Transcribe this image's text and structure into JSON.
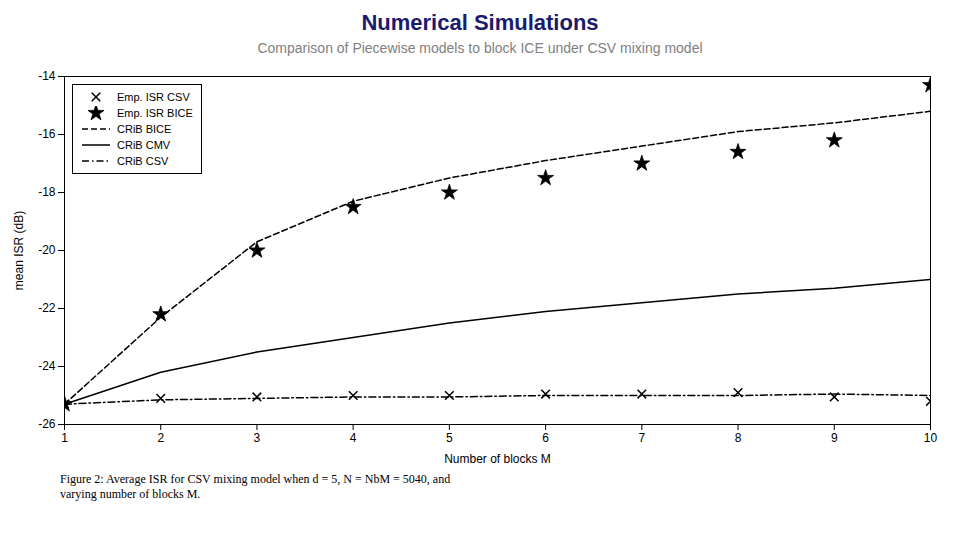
{
  "chart_data": {
    "type": "line",
    "title": "Numerical Simulations",
    "subtitle": "Comparison of Piecewise models to block ICE under CSV mixing model",
    "xlabel": "Number of blocks M",
    "ylabel": "mean ISR (dB)",
    "caption": "Figure 2:  Average ISR for CSV mixing model when d = 5, N = NbM = 5040, and\nvarying number of blocks M.",
    "x": [
      1,
      2,
      3,
      4,
      5,
      6,
      7,
      8,
      9,
      10
    ],
    "series": [
      {
        "name": "Emp. ISR CSV",
        "type": "scatter",
        "marker": "x",
        "color": "black",
        "values": [
          -25.3,
          -25.1,
          -25.05,
          -25.0,
          -25.0,
          -24.95,
          -24.95,
          -24.9,
          -25.05,
          -25.2
        ]
      },
      {
        "name": "Emp. ISR BICE",
        "type": "scatter",
        "marker": "star",
        "color": "black",
        "values": [
          -25.3,
          -22.2,
          -20.0,
          -18.5,
          -18.0,
          -17.5,
          -17.0,
          -16.6,
          -16.2,
          -14.3
        ]
      },
      {
        "name": "CRiB BICE",
        "type": "line",
        "line_style": "dashed",
        "color": "black",
        "values": [
          -25.3,
          -22.3,
          -19.7,
          -18.3,
          -17.5,
          -16.9,
          -16.4,
          -15.9,
          -15.6,
          -15.2
        ]
      },
      {
        "name": "CRiB CMV",
        "type": "line",
        "line_style": "solid",
        "color": "black",
        "values": [
          -25.3,
          -24.2,
          -23.5,
          -23.0,
          -22.5,
          -22.1,
          -21.8,
          -21.5,
          -21.3,
          -21.0
        ]
      },
      {
        "name": "CRiB CSV",
        "type": "line",
        "line_style": "dashdot",
        "color": "black",
        "values": [
          -25.3,
          -25.15,
          -25.1,
          -25.05,
          -25.05,
          -25.0,
          -25.0,
          -25.0,
          -24.95,
          -25.0
        ]
      }
    ],
    "xlim": [
      1,
      10
    ],
    "ylim": [
      -26,
      -14
    ],
    "xticks": [
      1,
      2,
      3,
      4,
      5,
      6,
      7,
      8,
      9,
      10
    ],
    "yticks": [
      -26,
      -24,
      -22,
      -20,
      -18,
      -16,
      -14
    ],
    "grid": false,
    "legend": "upper left"
  }
}
